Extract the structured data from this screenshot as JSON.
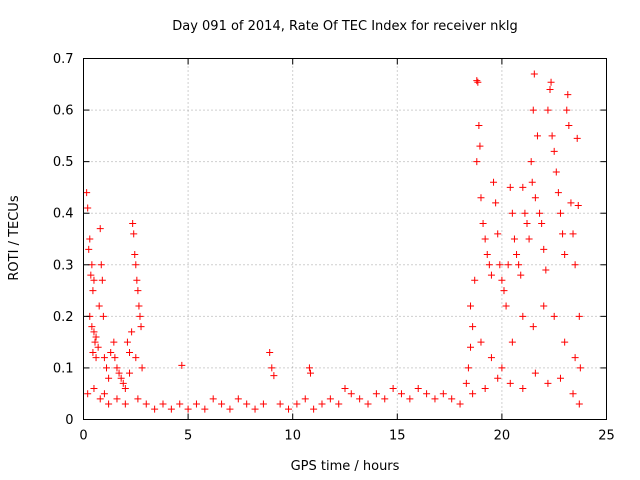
{
  "chart_data": {
    "type": "scatter",
    "title": "Day 091 of 2014, Rate Of TEC Index for receiver nklg",
    "xlabel": "GPS time / hours",
    "ylabel": "ROTI / TECUs",
    "xlim": [
      0,
      25
    ],
    "ylim": [
      0,
      0.7
    ],
    "xticks": [
      0,
      5,
      10,
      15,
      20,
      25
    ],
    "yticks": [
      0,
      0.1,
      0.2,
      0.3,
      0.4,
      0.5,
      0.6,
      0.7
    ],
    "xtick_labels": [
      "0",
      "5",
      "10",
      "15",
      "20",
      "25"
    ],
    "ytick_labels": [
      "0",
      "0.1",
      "0.2",
      "0.3",
      "0.4",
      "0.5",
      "0.6",
      "0.7"
    ],
    "grid": true,
    "marker": "+",
    "marker_color": "#ff0000",
    "series": [
      {
        "name": "ROTI",
        "points": [
          [
            0.15,
            0.44
          ],
          [
            0.2,
            0.41
          ],
          [
            0.3,
            0.35
          ],
          [
            0.25,
            0.33
          ],
          [
            0.4,
            0.3
          ],
          [
            0.35,
            0.28
          ],
          [
            0.5,
            0.27
          ],
          [
            0.45,
            0.25
          ],
          [
            0.3,
            0.2
          ],
          [
            0.4,
            0.18
          ],
          [
            0.5,
            0.17
          ],
          [
            0.6,
            0.16
          ],
          [
            0.55,
            0.15
          ],
          [
            0.7,
            0.14
          ],
          [
            0.45,
            0.13
          ],
          [
            0.8,
            0.37
          ],
          [
            0.85,
            0.3
          ],
          [
            0.9,
            0.27
          ],
          [
            0.75,
            0.22
          ],
          [
            0.95,
            0.2
          ],
          [
            1.0,
            0.12
          ],
          [
            1.1,
            0.1
          ],
          [
            1.2,
            0.08
          ],
          [
            0.6,
            0.12
          ],
          [
            1.3,
            0.13
          ],
          [
            1.5,
            0.12
          ],
          [
            1.6,
            0.1
          ],
          [
            1.7,
            0.09
          ],
          [
            1.8,
            0.08
          ],
          [
            1.9,
            0.07
          ],
          [
            2.0,
            0.06
          ],
          [
            1.45,
            0.15
          ],
          [
            2.1,
            0.15
          ],
          [
            2.2,
            0.13
          ],
          [
            2.3,
            0.17
          ],
          [
            2.35,
            0.38
          ],
          [
            2.4,
            0.36
          ],
          [
            2.45,
            0.32
          ],
          [
            2.5,
            0.3
          ],
          [
            2.55,
            0.27
          ],
          [
            2.6,
            0.25
          ],
          [
            2.65,
            0.22
          ],
          [
            2.7,
            0.2
          ],
          [
            2.75,
            0.18
          ],
          [
            2.8,
            0.1
          ],
          [
            2.5,
            0.12
          ],
          [
            2.2,
            0.09
          ],
          [
            1.0,
            0.05
          ],
          [
            0.2,
            0.05
          ],
          [
            0.5,
            0.06
          ],
          [
            0.8,
            0.04
          ],
          [
            1.2,
            0.03
          ],
          [
            1.6,
            0.04
          ],
          [
            2.0,
            0.03
          ],
          [
            2.6,
            0.04
          ],
          [
            3.0,
            0.03
          ],
          [
            3.4,
            0.02
          ],
          [
            3.8,
            0.03
          ],
          [
            4.2,
            0.02
          ],
          [
            4.6,
            0.03
          ],
          [
            4.7,
            0.105
          ],
          [
            5.0,
            0.02
          ],
          [
            5.4,
            0.03
          ],
          [
            5.8,
            0.02
          ],
          [
            6.2,
            0.04
          ],
          [
            6.6,
            0.03
          ],
          [
            7.0,
            0.02
          ],
          [
            7.4,
            0.04
          ],
          [
            7.8,
            0.03
          ],
          [
            8.2,
            0.02
          ],
          [
            8.6,
            0.03
          ],
          [
            8.9,
            0.13
          ],
          [
            9.0,
            0.1
          ],
          [
            9.1,
            0.085
          ],
          [
            9.4,
            0.03
          ],
          [
            9.8,
            0.02
          ],
          [
            10.2,
            0.03
          ],
          [
            10.6,
            0.04
          ],
          [
            10.8,
            0.1
          ],
          [
            10.85,
            0.09
          ],
          [
            11.0,
            0.02
          ],
          [
            11.4,
            0.03
          ],
          [
            11.8,
            0.04
          ],
          [
            12.2,
            0.03
          ],
          [
            12.5,
            0.06
          ],
          [
            12.8,
            0.05
          ],
          [
            13.2,
            0.04
          ],
          [
            13.6,
            0.03
          ],
          [
            14.0,
            0.05
          ],
          [
            14.4,
            0.04
          ],
          [
            14.8,
            0.06
          ],
          [
            15.2,
            0.05
          ],
          [
            15.6,
            0.04
          ],
          [
            16.0,
            0.06
          ],
          [
            16.4,
            0.05
          ],
          [
            16.8,
            0.04
          ],
          [
            17.2,
            0.05
          ],
          [
            17.6,
            0.04
          ],
          [
            18.0,
            0.03
          ],
          [
            18.3,
            0.07
          ],
          [
            18.4,
            0.1
          ],
          [
            18.5,
            0.14
          ],
          [
            18.6,
            0.18
          ],
          [
            18.5,
            0.22
          ],
          [
            18.7,
            0.27
          ],
          [
            18.8,
            0.657
          ],
          [
            18.85,
            0.654
          ],
          [
            18.9,
            0.57
          ],
          [
            18.95,
            0.53
          ],
          [
            18.8,
            0.5
          ],
          [
            19.0,
            0.43
          ],
          [
            19.1,
            0.38
          ],
          [
            19.2,
            0.35
          ],
          [
            19.3,
            0.32
          ],
          [
            19.4,
            0.3
          ],
          [
            19.5,
            0.28
          ],
          [
            19.6,
            0.46
          ],
          [
            19.7,
            0.42
          ],
          [
            19.8,
            0.36
          ],
          [
            19.9,
            0.3
          ],
          [
            20.0,
            0.27
          ],
          [
            20.1,
            0.25
          ],
          [
            20.2,
            0.22
          ],
          [
            20.3,
            0.3
          ],
          [
            20.4,
            0.45
          ],
          [
            20.5,
            0.4
          ],
          [
            20.6,
            0.35
          ],
          [
            20.7,
            0.32
          ],
          [
            20.8,
            0.3
          ],
          [
            20.9,
            0.28
          ],
          [
            21.0,
            0.45
          ],
          [
            21.1,
            0.4
          ],
          [
            21.2,
            0.38
          ],
          [
            21.3,
            0.35
          ],
          [
            21.4,
            0.5
          ],
          [
            21.45,
            0.46
          ],
          [
            21.5,
            0.6
          ],
          [
            21.55,
            0.67
          ],
          [
            21.6,
            0.43
          ],
          [
            21.7,
            0.55
          ],
          [
            21.8,
            0.4
          ],
          [
            21.9,
            0.38
          ],
          [
            22.0,
            0.33
          ],
          [
            22.1,
            0.29
          ],
          [
            22.2,
            0.6
          ],
          [
            22.3,
            0.64
          ],
          [
            22.35,
            0.654
          ],
          [
            22.4,
            0.55
          ],
          [
            22.5,
            0.52
          ],
          [
            22.6,
            0.48
          ],
          [
            22.7,
            0.44
          ],
          [
            22.8,
            0.4
          ],
          [
            22.9,
            0.36
          ],
          [
            23.0,
            0.32
          ],
          [
            23.1,
            0.6
          ],
          [
            23.15,
            0.63
          ],
          [
            23.2,
            0.57
          ],
          [
            23.3,
            0.42
          ],
          [
            23.4,
            0.36
          ],
          [
            23.5,
            0.3
          ],
          [
            23.6,
            0.545
          ],
          [
            23.65,
            0.415
          ],
          [
            23.7,
            0.2
          ],
          [
            23.75,
            0.1
          ],
          [
            19.0,
            0.15
          ],
          [
            19.5,
            0.12
          ],
          [
            20.0,
            0.1
          ],
          [
            20.5,
            0.15
          ],
          [
            21.0,
            0.2
          ],
          [
            21.5,
            0.18
          ],
          [
            22.0,
            0.22
          ],
          [
            22.5,
            0.2
          ],
          [
            23.0,
            0.15
          ],
          [
            23.5,
            0.12
          ],
          [
            18.6,
            0.05
          ],
          [
            19.2,
            0.06
          ],
          [
            19.8,
            0.08
          ],
          [
            20.4,
            0.07
          ],
          [
            21.0,
            0.06
          ],
          [
            21.6,
            0.09
          ],
          [
            22.2,
            0.07
          ],
          [
            22.8,
            0.08
          ],
          [
            23.4,
            0.05
          ],
          [
            23.7,
            0.03
          ]
        ]
      }
    ]
  }
}
